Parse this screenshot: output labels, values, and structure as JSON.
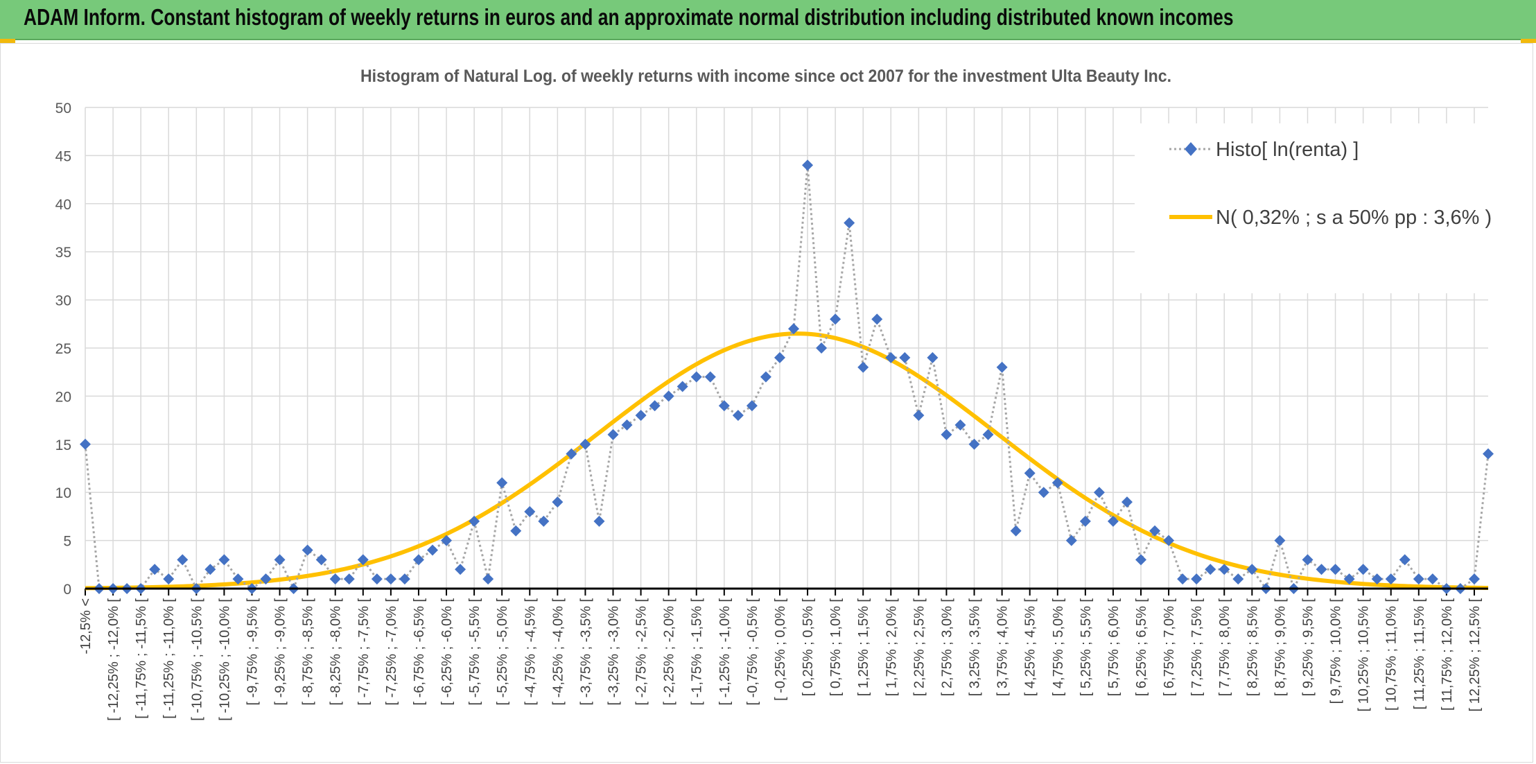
{
  "header": {
    "title": "ADAM Inform. Constant histogram of weekly returns in euros and an approximate normal distribution including distributed known incomes",
    "background": "#77c97a",
    "accent": "#f2b90c"
  },
  "chart_data": {
    "type": "line",
    "title": "Histogram of Natural Log. of weekly returns with income since oct 2007 for the investment Ulta Beauty Inc.",
    "xlabel": "",
    "ylabel": "",
    "ylim": [
      0,
      50
    ],
    "yticks": [
      0,
      5,
      10,
      15,
      20,
      25,
      30,
      35,
      40,
      45,
      50
    ],
    "grid": true,
    "legend_position": "top-right",
    "categories": [
      "-12,5% <",
      "[ -12,25% ; -12,0% [",
      "[ -11,75% ; -11,5% [",
      "[ -11,25% ; -11,0% [",
      "[ -10,75% ; -10,5% [",
      "[ -10,25% ; -10,0% [",
      "[ -9,75% ; -9,5% [",
      "[ -9,25% ; -9,0% [",
      "[ -8,75% ; -8,5% [",
      "[ -8,25% ; -8,0% [",
      "[ -7,75% ; -7,5% [",
      "[ -7,25% ; -7,0% [",
      "[ -6,75% ; -6,5% [",
      "[ -6,25% ; -6,0% [",
      "[ -5,75% ; -5,5% [",
      "[ -5,25% ; -5,0% [",
      "[ -4,75% ; -4,5% [",
      "[ -4,25% ; -4,0% [",
      "[ -3,75% ; -3,5% [",
      "[ -3,25% ; -3,0% [",
      "[ -2,75% ; -2,5% [",
      "[ -2,25% ; -2,0% [",
      "[ -1,75% ; -1,5% [",
      "[ -1,25% ; -1,0% [",
      "[ -0,75% ; -0,5% [",
      "[ -0,25% ; 0,0% [",
      "[ 0,25% ; 0,5% [",
      "[ 0,75% ; 1,0% [",
      "[ 1,25% ; 1,5% [",
      "[ 1,75% ; 2,0% [",
      "[ 2,25% ; 2,5% [",
      "[ 2,75% ; 3,0% [",
      "[ 3,25% ; 3,5% [",
      "[ 3,75% ; 4,0% [",
      "[ 4,25% ; 4,5% [",
      "[ 4,75% ; 5,0% [",
      "[ 5,25% ; 5,5% [",
      "[ 5,75% ; 6,0% [",
      "[ 6,25% ; 6,5% [",
      "[ 6,75% ; 7,0% [",
      "[ 7,25% ; 7,5% [",
      "[ 7,75% ; 8,0% [",
      "[ 8,25% ; 8,5% [",
      "[ 8,75% ; 9,0% [",
      "[ 9,25% ; 9,5% [",
      "[ 9,75% ; 10,0% [",
      "[ 10,25% ; 10,5% [",
      "[ 10,75% ; 11,0% [",
      "[ 11,25% ; 11,5% [",
      "[ 11,75% ; 12,0% [",
      "[ 12,25% ; 12,5% ["
    ],
    "series": [
      {
        "name": "Histo[ ln(renta) ]",
        "kind": "histogram",
        "color": "#4472c4",
        "line_color": "#a6a6a6",
        "values": [
          15,
          0,
          0,
          0,
          0,
          2,
          1,
          3,
          0,
          2,
          3,
          1,
          0,
          1,
          3,
          0,
          4,
          3,
          1,
          1,
          3,
          1,
          1,
          1,
          3,
          4,
          5,
          2,
          7,
          1,
          11,
          6,
          8,
          7,
          9,
          14,
          15,
          7,
          16,
          17,
          18,
          19,
          20,
          21,
          22,
          22,
          19,
          18,
          19,
          22,
          24,
          27,
          44,
          25,
          28,
          38,
          23,
          28,
          24,
          24,
          18,
          24,
          16,
          17,
          15,
          16,
          23,
          6,
          12,
          10,
          11,
          5,
          7,
          10,
          7,
          9,
          3,
          6,
          5,
          1,
          1,
          2,
          2,
          1,
          2,
          0,
          5,
          0,
          3,
          2,
          2,
          1,
          2,
          1,
          1,
          3,
          1,
          1,
          0,
          0,
          1,
          14
        ]
      },
      {
        "name": "N( 0,32% ; s a 50% pp : 3,6% )",
        "kind": "normal",
        "color": "#ffc000",
        "mean": 0.32,
        "sd": 3.6,
        "peak": 26.5,
        "bin_start": -12.5,
        "bin_width": 0.25
      }
    ]
  }
}
